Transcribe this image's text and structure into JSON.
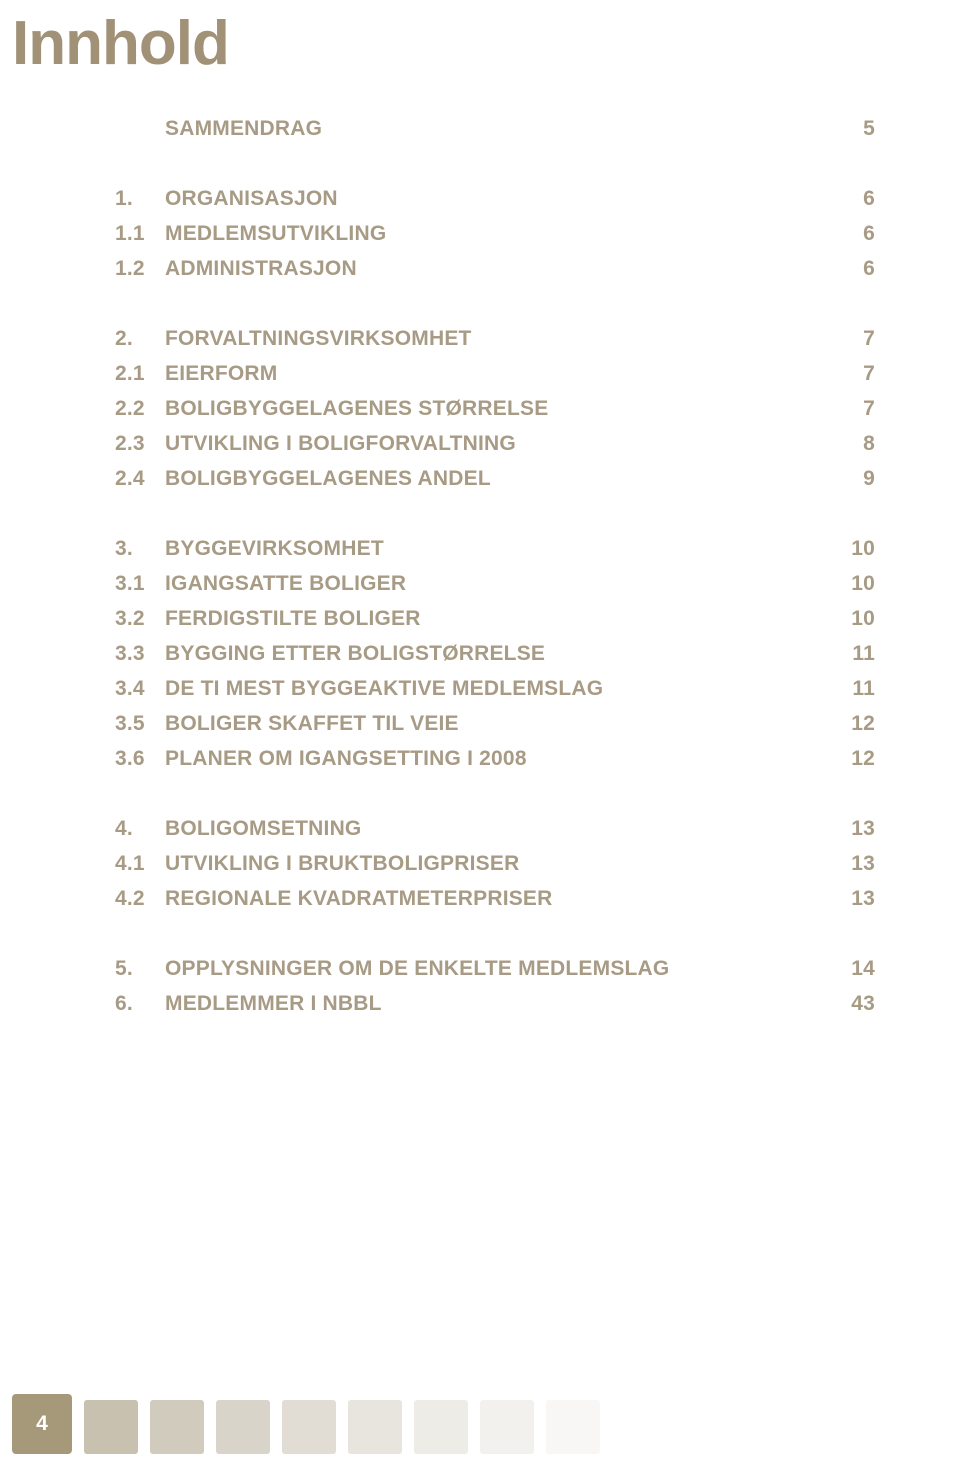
{
  "title": "Innhold",
  "toc": [
    [
      {
        "num": "",
        "label": "SAMMENDRAG",
        "page": "5"
      }
    ],
    [
      {
        "num": "1.",
        "label": "ORGANISASJON",
        "page": "6"
      },
      {
        "num": "1.1",
        "label": "MEDLEMSUTVIKLING",
        "page": "6"
      },
      {
        "num": "1.2",
        "label": "ADMINISTRASJON",
        "page": "6"
      }
    ],
    [
      {
        "num": "2.",
        "label": "FORVALTNINGSVIRKSOMHET",
        "page": "7"
      },
      {
        "num": "2.1",
        "label": "EIERFORM",
        "page": "7"
      },
      {
        "num": "2.2",
        "label": "BOLIGBYGGELAGENES STØRRELSE",
        "page": "7"
      },
      {
        "num": "2.3",
        "label": "UTVIKLING I BOLIGFORVALTNING",
        "page": "8"
      },
      {
        "num": "2.4",
        "label": "BOLIGBYGGELAGENES ANDEL",
        "page": "9"
      }
    ],
    [
      {
        "num": "3.",
        "label": "BYGGEVIRKSOMHET",
        "page": "10"
      },
      {
        "num": "3.1",
        "label": "IGANGSATTE BOLIGER",
        "page": "10"
      },
      {
        "num": "3.2",
        "label": "FERDIGSTILTE BOLIGER",
        "page": "10"
      },
      {
        "num": "3.3",
        "label": "BYGGING ETTER BOLIGSTØRRELSE",
        "page": "11"
      },
      {
        "num": "3.4",
        "label": "DE TI MEST BYGGEAKTIVE MEDLEMSLAG",
        "page": "11"
      },
      {
        "num": "3.5",
        "label": "BOLIGER SKAFFET TIL VEIE",
        "page": "12"
      },
      {
        "num": "3.6",
        "label": "PLANER OM IGANGSETTING I 2008",
        "page": "12"
      }
    ],
    [
      {
        "num": "4.",
        "label": "BOLIGOMSETNING",
        "page": "13"
      },
      {
        "num": "4.1",
        "label": "UTVIKLING I BRUKTBOLIGPRISER",
        "page": "13"
      },
      {
        "num": "4.2",
        "label": "REGIONALE KVADRATMETERPRISER",
        "page": "13"
      }
    ],
    [
      {
        "num": "5.",
        "label": "OPPLYSNINGER OM DE ENKELTE MEDLEMSLAG",
        "page": "14"
      },
      {
        "num": "6.",
        "label": "MEDLEMMER I NBBL",
        "page": "43"
      }
    ]
  ],
  "footer": {
    "page_number": "4",
    "square_colors": [
      "#c8c1b0",
      "#d1cbbd",
      "#d9d4c9",
      "#e1ddd4",
      "#e8e5de",
      "#eeece7",
      "#f3f1ed",
      "#f8f7f5"
    ]
  },
  "colors": {
    "title": "#a19177",
    "text": "#a89b85",
    "page_box_bg": "#a69979",
    "page_box_fg": "#ffffff",
    "background": "#ffffff"
  }
}
